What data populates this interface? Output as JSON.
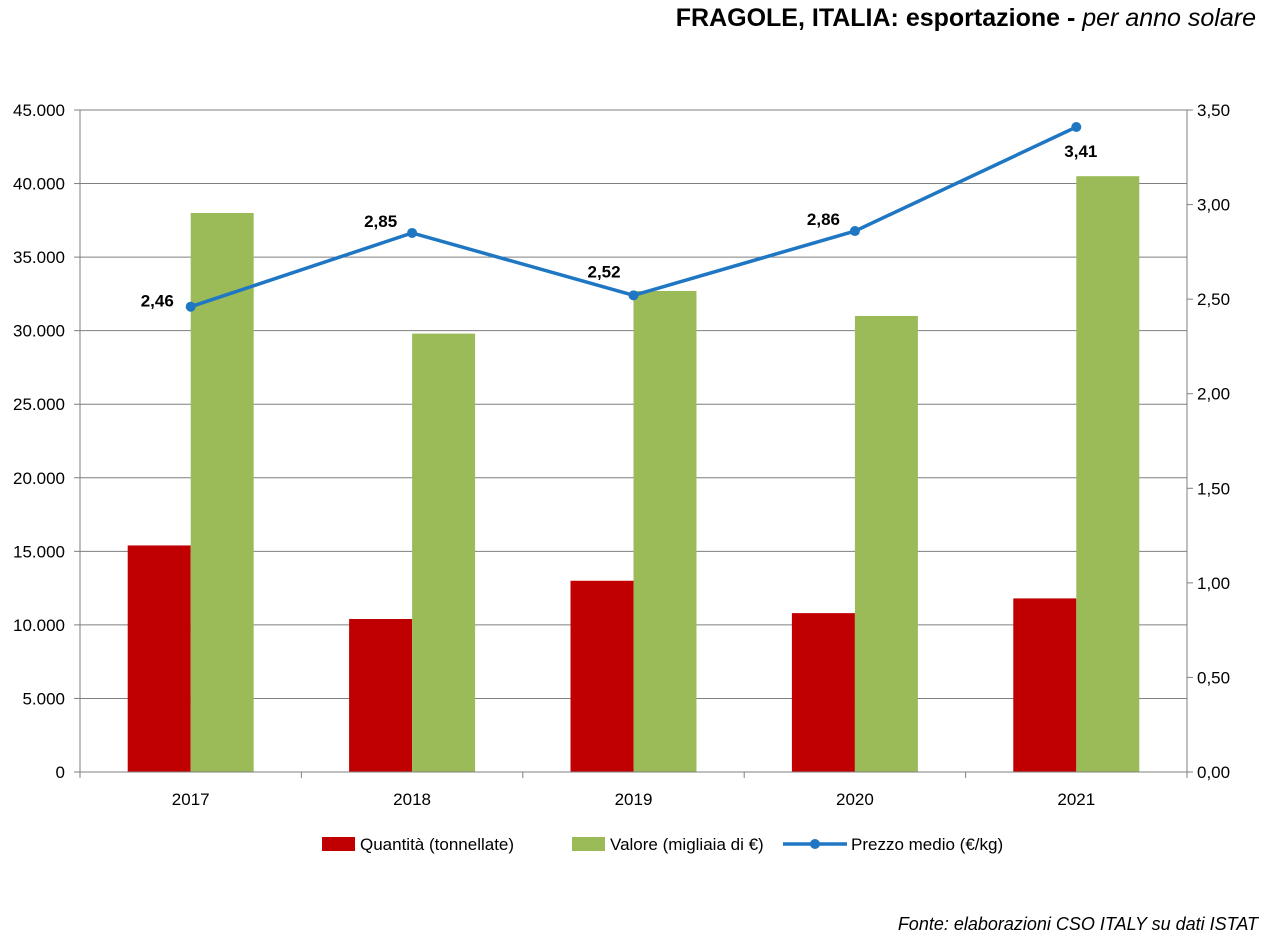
{
  "chart_data": {
    "type": "bar",
    "title": "FRAGOLE, ITALIA: esportazione -",
    "subtitle": "per anno solare",
    "categories": [
      "2017",
      "2018",
      "2019",
      "2020",
      "2021"
    ],
    "series": [
      {
        "name": "Quantità (tonnellate)",
        "type": "bar",
        "axis": "left",
        "color": "#c00000",
        "values": [
          15400,
          10400,
          13000,
          10800,
          11800
        ]
      },
      {
        "name": "Valore (migliaia di €)",
        "type": "bar",
        "axis": "left",
        "color": "#9bbb59",
        "values": [
          38000,
          29800,
          32700,
          31000,
          40500
        ]
      },
      {
        "name": "Prezzo medio (€/kg)",
        "type": "line",
        "axis": "right",
        "color": "#1f77c4",
        "values": [
          2.46,
          2.85,
          2.52,
          2.86,
          3.41
        ],
        "labels": [
          "2,46",
          "2,85",
          "2,52",
          "2,86",
          "3,41"
        ]
      }
    ],
    "y_left": {
      "ylim": [
        0,
        45000
      ],
      "ticks": [
        "0",
        "5.000",
        "10.000",
        "15.000",
        "20.000",
        "25.000",
        "30.000",
        "35.000",
        "40.000",
        "45.000"
      ]
    },
    "y_right": {
      "ylim": [
        0,
        3.5
      ],
      "ticks": [
        "0,00",
        "0,50",
        "1,00",
        "1,50",
        "2,00",
        "2,50",
        "3,00",
        "3,50"
      ]
    },
    "grid": true,
    "legend_position": "bottom"
  },
  "source": "Fonte: elaborazioni CSO ITALY su dati ISTAT"
}
